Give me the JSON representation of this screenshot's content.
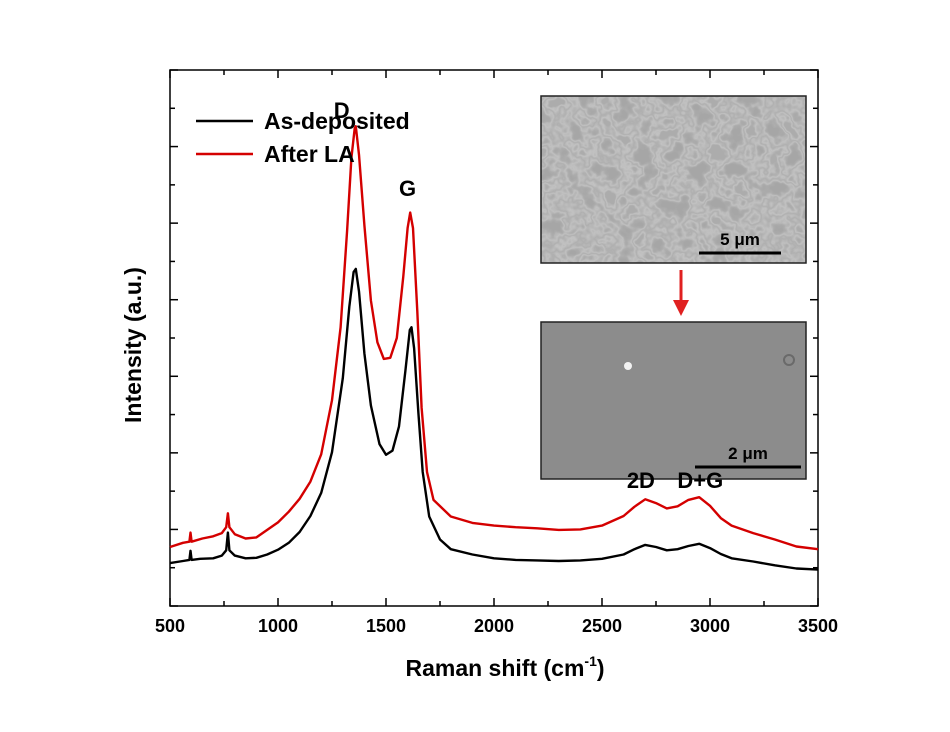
{
  "chart_data": {
    "type": "line",
    "title": "",
    "xlabel": "Raman shift (cm",
    "xlabel_superscript": "-1",
    "xlabel_suffix": ")",
    "ylabel": "Intensity (a.u.)",
    "xlim": [
      500,
      3500
    ],
    "ylim": [
      0,
      100
    ],
    "x_ticks": [
      500,
      1000,
      1500,
      2000,
      2500,
      3000,
      3500
    ],
    "x_tick_labels": [
      "500",
      "1000",
      "1500",
      "2000",
      "2500",
      "3000",
      "3500"
    ],
    "y_tick_labels_shown": false,
    "grid": false,
    "legend_position": "top-left",
    "series": [
      {
        "name": "As-deposited",
        "color": "#000000",
        "points": [
          [
            500,
            8
          ],
          [
            560,
            8.4
          ],
          [
            590,
            8.6
          ],
          [
            595,
            10.3
          ],
          [
            600,
            8.6
          ],
          [
            640,
            8.8
          ],
          [
            700,
            8.9
          ],
          [
            740,
            9.4
          ],
          [
            760,
            10.4
          ],
          [
            768,
            13.7
          ],
          [
            775,
            10.4
          ],
          [
            800,
            9.4
          ],
          [
            850,
            8.9
          ],
          [
            900,
            9.0
          ],
          [
            950,
            9.6
          ],
          [
            1000,
            10.5
          ],
          [
            1050,
            11.8
          ],
          [
            1100,
            13.8
          ],
          [
            1150,
            16.8
          ],
          [
            1200,
            21.1
          ],
          [
            1250,
            28.7
          ],
          [
            1300,
            42.5
          ],
          [
            1330,
            55.8
          ],
          [
            1350,
            62.3
          ],
          [
            1360,
            62.9
          ],
          [
            1375,
            58.7
          ],
          [
            1400,
            47.1
          ],
          [
            1430,
            37.4
          ],
          [
            1470,
            30.2
          ],
          [
            1500,
            28.2
          ],
          [
            1530,
            29.0
          ],
          [
            1560,
            33.5
          ],
          [
            1590,
            43.9
          ],
          [
            1610,
            51.5
          ],
          [
            1618,
            52.0
          ],
          [
            1630,
            48.1
          ],
          [
            1650,
            36.0
          ],
          [
            1670,
            25.0
          ],
          [
            1700,
            16.7
          ],
          [
            1750,
            12.4
          ],
          [
            1800,
            10.6
          ],
          [
            1900,
            9.6
          ],
          [
            2000,
            8.9
          ],
          [
            2100,
            8.6
          ],
          [
            2200,
            8.5
          ],
          [
            2300,
            8.4
          ],
          [
            2400,
            8.5
          ],
          [
            2500,
            8.8
          ],
          [
            2600,
            9.6
          ],
          [
            2650,
            10.6
          ],
          [
            2700,
            11.4
          ],
          [
            2750,
            11.0
          ],
          [
            2800,
            10.4
          ],
          [
            2850,
            10.6
          ],
          [
            2900,
            11.2
          ],
          [
            2950,
            11.6
          ],
          [
            3000,
            10.8
          ],
          [
            3050,
            9.7
          ],
          [
            3100,
            8.9
          ],
          [
            3200,
            8.3
          ],
          [
            3300,
            7.6
          ],
          [
            3400,
            7.0
          ],
          [
            3500,
            6.8
          ]
        ]
      },
      {
        "name": "After LA",
        "color": "#d40000",
        "points": [
          [
            500,
            11
          ],
          [
            560,
            11.8
          ],
          [
            590,
            12.0
          ],
          [
            595,
            13.7
          ],
          [
            600,
            12.0
          ],
          [
            650,
            12.6
          ],
          [
            700,
            13.0
          ],
          [
            740,
            13.6
          ],
          [
            760,
            14.7
          ],
          [
            768,
            17.3
          ],
          [
            775,
            14.7
          ],
          [
            800,
            13.4
          ],
          [
            850,
            12.6
          ],
          [
            900,
            12.8
          ],
          [
            950,
            14.2
          ],
          [
            1000,
            15.6
          ],
          [
            1050,
            17.6
          ],
          [
            1100,
            20.0
          ],
          [
            1150,
            23.2
          ],
          [
            1200,
            28.3
          ],
          [
            1250,
            38.4
          ],
          [
            1290,
            52.0
          ],
          [
            1320,
            70.0
          ],
          [
            1340,
            83.6
          ],
          [
            1355,
            89.1
          ],
          [
            1360,
            89.5
          ],
          [
            1375,
            84.2
          ],
          [
            1400,
            71.0
          ],
          [
            1430,
            57.0
          ],
          [
            1460,
            49.2
          ],
          [
            1490,
            46.1
          ],
          [
            1520,
            46.3
          ],
          [
            1550,
            50.0
          ],
          [
            1580,
            61.5
          ],
          [
            1600,
            70.5
          ],
          [
            1612,
            73.4
          ],
          [
            1625,
            70.5
          ],
          [
            1645,
            55.0
          ],
          [
            1665,
            37.0
          ],
          [
            1690,
            25.0
          ],
          [
            1720,
            19.8
          ],
          [
            1800,
            16.7
          ],
          [
            1900,
            15.5
          ],
          [
            2000,
            15.0
          ],
          [
            2100,
            14.7
          ],
          [
            2200,
            14.5
          ],
          [
            2300,
            14.2
          ],
          [
            2400,
            14.3
          ],
          [
            2500,
            15.0
          ],
          [
            2600,
            16.8
          ],
          [
            2650,
            18.5
          ],
          [
            2700,
            19.9
          ],
          [
            2750,
            19.2
          ],
          [
            2800,
            18.2
          ],
          [
            2850,
            18.6
          ],
          [
            2900,
            19.8
          ],
          [
            2950,
            20.3
          ],
          [
            3000,
            18.7
          ],
          [
            3050,
            16.4
          ],
          [
            3100,
            15.0
          ],
          [
            3200,
            13.6
          ],
          [
            3300,
            12.4
          ],
          [
            3400,
            11.1
          ],
          [
            3500,
            10.6
          ]
        ]
      }
    ],
    "annotations": [
      {
        "text": "D",
        "x": 1295,
        "y": 91
      },
      {
        "text": "G",
        "x": 1600,
        "y": 76.5
      },
      {
        "text": "2D",
        "x": 2680,
        "y": 22
      },
      {
        "text": "D+G",
        "x": 2955,
        "y": 22
      }
    ],
    "insets": [
      {
        "name": "sem-wrinkled-surface",
        "scale_label": "5 μm"
      },
      {
        "name": "sem-smooth-surface",
        "scale_label": "2 μm"
      }
    ],
    "arrow_color": "#e02020"
  }
}
